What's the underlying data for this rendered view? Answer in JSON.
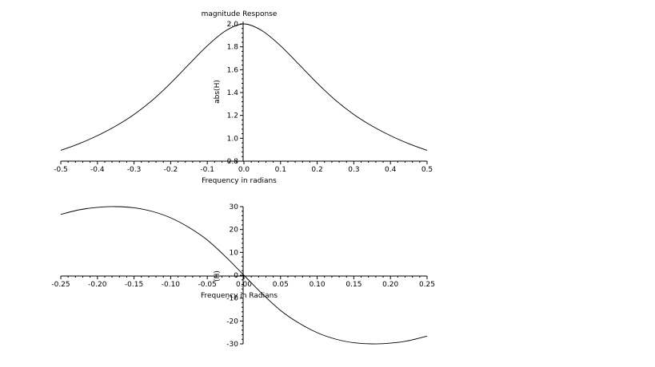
{
  "chart_data": [
    {
      "type": "line",
      "title": "magnitude Response",
      "xlabel": "Frequency in radians",
      "ylabel": "abs(H)",
      "xlim": [
        -0.5,
        0.5
      ],
      "ylim": [
        0.8,
        2.0
      ],
      "xticks": [
        "-0.5",
        "-0.4",
        "-0.3",
        "-0.2",
        "-0.1",
        "0.0",
        "0.1",
        "0.2",
        "0.3",
        "0.4",
        "0.5"
      ],
      "yticks": [
        "0.8",
        "1.0",
        "1.2",
        "1.4",
        "1.6",
        "1.8",
        "2.0"
      ],
      "grid": false,
      "series": [
        {
          "x": [
            -0.5,
            -0.45,
            -0.4,
            -0.35,
            -0.3,
            -0.25,
            -0.2,
            -0.15,
            -0.1,
            -0.05,
            0.0,
            0.05,
            0.1,
            0.15,
            0.2,
            0.25,
            0.3,
            0.35,
            0.4,
            0.45,
            0.5
          ],
          "y": [
            0.894,
            0.953,
            1.023,
            1.107,
            1.208,
            1.333,
            1.482,
            1.647,
            1.809,
            1.94,
            2.0,
            1.94,
            1.809,
            1.647,
            1.482,
            1.333,
            1.208,
            1.107,
            1.023,
            0.953,
            0.894
          ]
        }
      ]
    },
    {
      "type": "line",
      "title": "",
      "xlabel": "Frequency in Radians",
      "ylabel": "(H)",
      "xlim": [
        -0.25,
        0.25
      ],
      "ylim": [
        -30,
        30
      ],
      "xticks": [
        "-0.25",
        "-0.20",
        "-0.15",
        "-0.10",
        "-0.05",
        "0.00",
        "0.05",
        "0.10",
        "0.15",
        "0.20",
        "0.25"
      ],
      "yticks": [
        "30",
        "20",
        "10",
        "0",
        "-10",
        "-20",
        "-30"
      ],
      "grid": false,
      "series": [
        {
          "x": [
            -0.25,
            -0.225,
            -0.2,
            -0.175,
            -0.15,
            -0.125,
            -0.1,
            -0.075,
            -0.05,
            -0.025,
            0.0,
            0.025,
            0.05,
            0.075,
            0.1,
            0.125,
            0.15,
            0.175,
            0.2,
            0.225,
            0.25
          ],
          "y": [
            26.6,
            28.6,
            29.7,
            30.0,
            29.5,
            27.9,
            25.1,
            20.9,
            15.4,
            8.1,
            0.0,
            -8.1,
            -15.4,
            -20.9,
            -25.1,
            -27.9,
            -29.5,
            -30.0,
            -29.7,
            -28.6,
            -26.6
          ]
        }
      ]
    }
  ]
}
